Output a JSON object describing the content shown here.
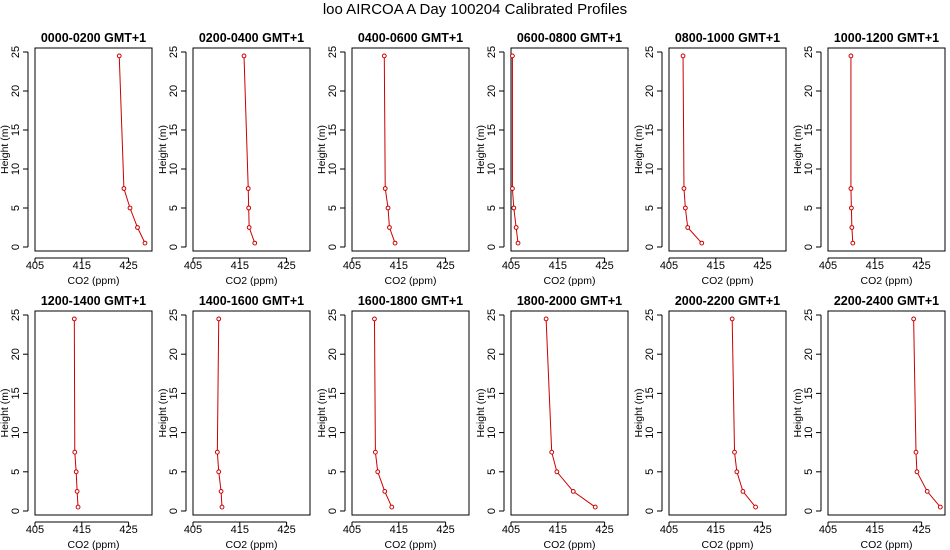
{
  "title": "loo AIRCOA A  Day 100204  Calibrated Profiles",
  "chart_data": {
    "type": "line",
    "title": "loo AIRCOA A  Day 100204  Calibrated Profiles",
    "xlabel": "CO2 (ppm)",
    "ylabel": "Height (m)",
    "xlim": [
      405,
      430
    ],
    "ylim": [
      0,
      25
    ],
    "xticks": [
      405,
      415,
      425
    ],
    "yticks": [
      0,
      5,
      10,
      15,
      20,
      25
    ],
    "heights": [
      0.5,
      2.5,
      5,
      7.5,
      24.5
    ],
    "line_color": "#cc0000",
    "grid": false,
    "panels": [
      {
        "name": "0000-0200 GMT+1",
        "x": [
          428.5,
          426.9,
          425.3,
          424.0,
          423.0
        ]
      },
      {
        "name": "0200-0400 GMT+1",
        "x": [
          418.2,
          417.0,
          416.9,
          416.8,
          415.9
        ]
      },
      {
        "name": "0400-0600 GMT+1",
        "x": [
          414.2,
          413.0,
          412.7,
          412.1,
          411.9
        ]
      },
      {
        "name": "0600-0800 GMT+1",
        "x": [
          406.5,
          406.1,
          405.6,
          405.3,
          405.3
        ]
      },
      {
        "name": "0800-1000 GMT+1",
        "x": [
          412.0,
          409.0,
          408.5,
          408.2,
          408.0
        ]
      },
      {
        "name": "1000-1200 GMT+1",
        "x": [
          410.3,
          410.1,
          410.0,
          409.9,
          409.9
        ]
      },
      {
        "name": "1200-1400 GMT+1",
        "x": [
          414.2,
          414.0,
          413.8,
          413.5,
          413.4
        ]
      },
      {
        "name": "1400-1600 GMT+1",
        "x": [
          411.2,
          411.0,
          410.5,
          410.2,
          410.5
        ]
      },
      {
        "name": "1600-1800 GMT+1",
        "x": [
          413.5,
          412.0,
          410.5,
          410.0,
          409.8
        ]
      },
      {
        "name": "1800-2000 GMT+1",
        "x": [
          423.0,
          418.3,
          414.8,
          413.7,
          412.5
        ]
      },
      {
        "name": "2000-2200 GMT+1",
        "x": [
          423.5,
          420.8,
          419.5,
          419.0,
          418.5
        ]
      },
      {
        "name": "2200-2400 GMT+1",
        "x": [
          429.0,
          426.2,
          424.0,
          423.8,
          423.3
        ]
      }
    ]
  }
}
